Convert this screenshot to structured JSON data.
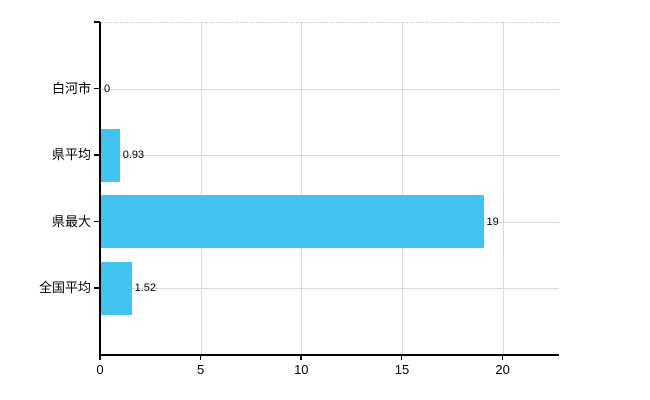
{
  "chart_data": {
    "type": "bar",
    "orientation": "horizontal",
    "title": "",
    "xlabel": "",
    "ylabel": "",
    "categories": [
      "白河市",
      "県平均",
      "県最大",
      "全国平均"
    ],
    "values": [
      0,
      0.93,
      19,
      1.52
    ],
    "value_labels": [
      "0",
      "0.93",
      "19",
      "1.52"
    ],
    "x_ticks": [
      0,
      5,
      10,
      15,
      20
    ],
    "x_tick_labels": [
      "0",
      "5",
      "10",
      "15",
      "20"
    ],
    "xlim": [
      0,
      22.8
    ],
    "grid": true,
    "legend_visible": false,
    "colors": {
      "bar": "#42c3f2",
      "grid": "#d9d9d9",
      "grid_dashed": "#cfcfcf",
      "axis": "#000000",
      "text": "#000000",
      "background": "#ffffff"
    }
  }
}
